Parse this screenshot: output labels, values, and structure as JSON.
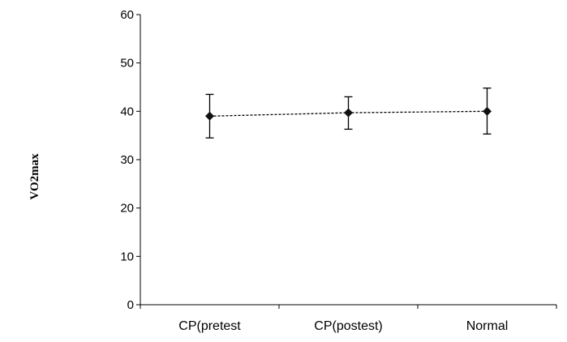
{
  "chart_data": {
    "type": "line",
    "title": "",
    "xlabel": "",
    "ylabel": "VO2max",
    "ylim": [
      0,
      60
    ],
    "yticks": [
      0,
      10,
      20,
      30,
      40,
      50,
      60
    ],
    "categories": [
      "CP(pretest",
      "CP(postest)",
      "Normal"
    ],
    "series": [
      {
        "values": [
          39.0,
          39.7,
          40.0
        ],
        "error_low": [
          34.5,
          36.3,
          35.3
        ],
        "error_high": [
          43.5,
          43.0,
          44.8
        ],
        "marker": "diamond",
        "line_style": "dotted"
      }
    ],
    "grid": false,
    "legend": "none"
  },
  "colors": {
    "axis": "#000000",
    "marker": "#111111",
    "line": "#000000"
  }
}
